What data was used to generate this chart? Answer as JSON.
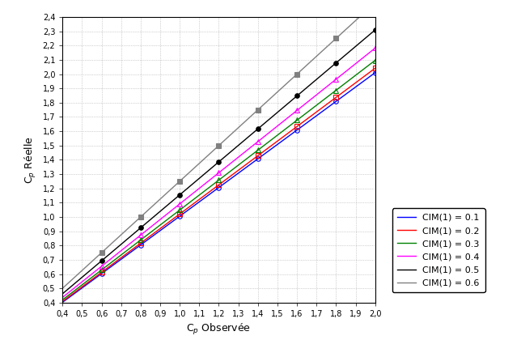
{
  "xlabel": "C$_p$ Observée",
  "ylabel": "C$_p$ Réelle",
  "xlim": [
    0.4,
    2.0
  ],
  "ylim": [
    0.4,
    2.4
  ],
  "xticks": [
    0.4,
    0.5,
    0.6,
    0.7,
    0.8,
    0.9,
    1.0,
    1.1,
    1.2,
    1.3,
    1.4,
    1.5,
    1.6,
    1.7,
    1.8,
    1.9,
    2.0
  ],
  "yticks": [
    0.4,
    0.5,
    0.6,
    0.7,
    0.8,
    0.9,
    1.0,
    1.1,
    1.2,
    1.3,
    1.4,
    1.5,
    1.6,
    1.7,
    1.8,
    1.9,
    2.0,
    2.1,
    2.2,
    2.3,
    2.4
  ],
  "series": [
    {
      "cim": 0.1,
      "color": "#0000FF",
      "marker": "o",
      "markerfacecolor": "none",
      "markersize": 4,
      "label": "CIM(1) = 0.1"
    },
    {
      "cim": 0.2,
      "color": "#FF0000",
      "marker": "s",
      "markerfacecolor": "none",
      "markersize": 4,
      "label": "CIM(1) = 0.2"
    },
    {
      "cim": 0.3,
      "color": "#008000",
      "marker": "^",
      "markerfacecolor": "none",
      "markersize": 4,
      "label": "CIM(1) = 0.3"
    },
    {
      "cim": 0.4,
      "color": "#FF00FF",
      "marker": "^",
      "markerfacecolor": "none",
      "markersize": 4,
      "label": "CIM(1) = 0.4"
    },
    {
      "cim": 0.5,
      "color": "#000000",
      "marker": "o",
      "markerfacecolor": "#000000",
      "markersize": 4,
      "label": "CIM(1) = 0.5"
    },
    {
      "cim": 0.6,
      "color": "#808080",
      "marker": "s",
      "markerfacecolor": "#808080",
      "markersize": 4,
      "label": "CIM(1) = 0.6"
    }
  ],
  "marker_x_positions": [
    0.6,
    0.8,
    1.0,
    1.2,
    1.4,
    1.6,
    1.8,
    2.0
  ],
  "background_color": "#FFFFFF",
  "grid_color": "#AAAAAA"
}
